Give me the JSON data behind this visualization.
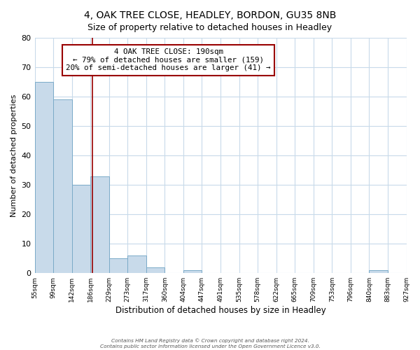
{
  "title": "4, OAK TREE CLOSE, HEADLEY, BORDON, GU35 8NB",
  "subtitle": "Size of property relative to detached houses in Headley",
  "xlabel": "Distribution of detached houses by size in Headley",
  "ylabel": "Number of detached properties",
  "bins": [
    "55sqm",
    "99sqm",
    "142sqm",
    "186sqm",
    "229sqm",
    "273sqm",
    "317sqm",
    "360sqm",
    "404sqm",
    "447sqm",
    "491sqm",
    "535sqm",
    "578sqm",
    "622sqm",
    "665sqm",
    "709sqm",
    "753sqm",
    "796sqm",
    "840sqm",
    "883sqm",
    "927sqm"
  ],
  "bar_heights": [
    65,
    59,
    30,
    33,
    5,
    6,
    2,
    0,
    1,
    0,
    0,
    0,
    0,
    0,
    0,
    0,
    0,
    0,
    1,
    0
  ],
  "bar_color": "#c8daea",
  "bar_edge_color": "#7aaac8",
  "ylim": [
    0,
    80
  ],
  "yticks": [
    0,
    10,
    20,
    30,
    40,
    50,
    60,
    70,
    80
  ],
  "property_line_color": "#990000",
  "annotation_text": "4 OAK TREE CLOSE: 190sqm\n← 79% of detached houses are smaller (159)\n20% of semi-detached houses are larger (41) →",
  "annotation_box_facecolor": "#ffffff",
  "annotation_box_edgecolor": "#990000",
  "footer_line1": "Contains HM Land Registry data © Crown copyright and database right 2024.",
  "footer_line2": "Contains public sector information licensed under the Open Government Licence v3.0.",
  "background_color": "#ffffff",
  "plot_background": "#ffffff",
  "grid_color": "#c8daea",
  "title_fontsize": 10,
  "subtitle_fontsize": 9
}
